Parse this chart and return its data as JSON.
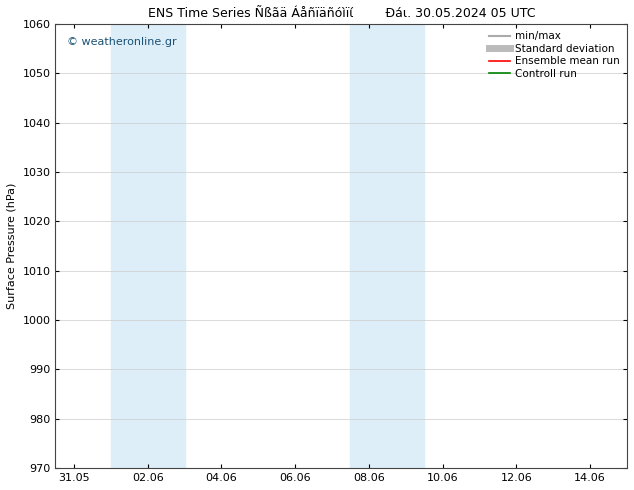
{
  "title": "ENS Time Series Ñßãä Áåñïäñóìïί",
  "title2": "Ðáι. 30.05.2024 05 UTC",
  "ylabel": "Surface Pressure (hPa)",
  "watermark": "© weatheronline.gr",
  "ylim": [
    970,
    1060
  ],
  "yticks": [
    970,
    980,
    990,
    1000,
    1010,
    1020,
    1030,
    1040,
    1050,
    1060
  ],
  "xtick_labels": [
    "31.05",
    "02.06",
    "04.06",
    "06.06",
    "08.06",
    "10.06",
    "12.06",
    "14.06"
  ],
  "xtick_positions": [
    0,
    2,
    4,
    6,
    8,
    10,
    12,
    14
  ],
  "xlim": [
    -0.5,
    15.0
  ],
  "shaded_bands": [
    {
      "xmin": 1.0,
      "xmax": 3.0,
      "color": "#ddeef8"
    },
    {
      "xmin": 7.5,
      "xmax": 9.5,
      "color": "#ddeef8"
    }
  ],
  "legend_items": [
    {
      "label": "min/max",
      "color": "#aaaaaa",
      "lw": 1.5,
      "linestyle": "-"
    },
    {
      "label": "Standard deviation",
      "color": "#bbbbbb",
      "lw": 5,
      "linestyle": "-"
    },
    {
      "label": "Ensemble mean run",
      "color": "#ff0000",
      "lw": 1.2,
      "linestyle": "-"
    },
    {
      "label": "Controll run",
      "color": "#008000",
      "lw": 1.2,
      "linestyle": "-"
    }
  ],
  "bg_color": "#ffffff",
  "grid_color": "#cccccc",
  "title_fontsize": 9,
  "tick_fontsize": 8,
  "ylabel_fontsize": 8,
  "legend_fontsize": 7.5,
  "watermark_color": "#1a5276",
  "watermark_fontsize": 8
}
